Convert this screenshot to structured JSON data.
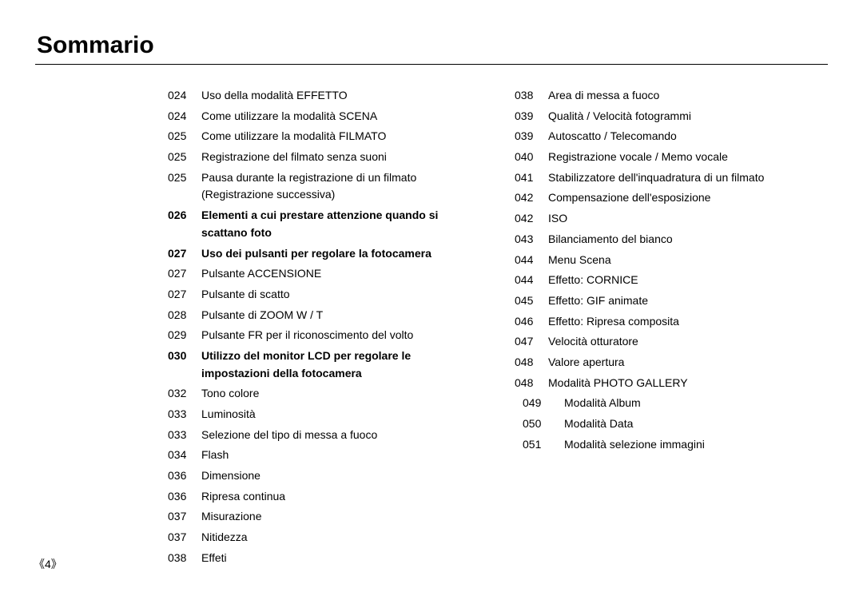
{
  "title": "Sommario",
  "pageNumber": "《4》",
  "leftColumn": [
    {
      "num": "024",
      "text": "Uso della modalità EFFETTO",
      "bold": false,
      "indent": 0
    },
    {
      "num": "024",
      "text": "Come utilizzare la modalità SCENA",
      "bold": false,
      "indent": 0
    },
    {
      "num": "025",
      "text": "Come utilizzare la modalità FILMATO",
      "bold": false,
      "indent": 0
    },
    {
      "num": "025",
      "text": "Registrazione del filmato senza suoni",
      "bold": false,
      "indent": 0
    },
    {
      "num": "025",
      "text": "Pausa durante la registrazione di un filmato (Registrazione successiva)",
      "bold": false,
      "indent": 0
    },
    {
      "num": "026",
      "text": "Elementi a cui prestare attenzione quando si scattano foto",
      "bold": true,
      "indent": 0
    },
    {
      "num": "027",
      "text": "Uso dei pulsanti per regolare la fotocamera",
      "bold": true,
      "indent": 0
    },
    {
      "num": "027",
      "text": "Pulsante ACCENSIONE",
      "bold": false,
      "indent": 0
    },
    {
      "num": "027",
      "text": "Pulsante di scatto",
      "bold": false,
      "indent": 0
    },
    {
      "num": "028",
      "text": "Pulsante di ZOOM W / T",
      "bold": false,
      "indent": 0
    },
    {
      "num": "029",
      "text": "Pulsante FR per il riconoscimento del volto",
      "bold": false,
      "indent": 0
    },
    {
      "num": "030",
      "text": "Utilizzo del monitor LCD per regolare le impostazioni della fotocamera",
      "bold": true,
      "indent": 0
    },
    {
      "num": "032",
      "text": "Tono colore",
      "bold": false,
      "indent": 0
    },
    {
      "num": "033",
      "text": "Luminosità",
      "bold": false,
      "indent": 0
    },
    {
      "num": "033",
      "text": "Selezione del tipo di messa a fuoco",
      "bold": false,
      "indent": 0
    },
    {
      "num": "034",
      "text": "Flash",
      "bold": false,
      "indent": 0
    },
    {
      "num": "036",
      "text": "Dimensione",
      "bold": false,
      "indent": 0
    },
    {
      "num": "036",
      "text": "Ripresa continua",
      "bold": false,
      "indent": 0
    },
    {
      "num": "037",
      "text": "Misurazione",
      "bold": false,
      "indent": 0
    },
    {
      "num": "037",
      "text": "Nitidezza",
      "bold": false,
      "indent": 0
    },
    {
      "num": "038",
      "text": "Effeti",
      "bold": false,
      "indent": 0
    }
  ],
  "rightColumn": [
    {
      "num": "038",
      "text": "Area di messa a fuoco",
      "bold": false,
      "indent": 0
    },
    {
      "num": "039",
      "text": "Qualità / Velocità fotogrammi",
      "bold": false,
      "indent": 0
    },
    {
      "num": "039",
      "text": "Autoscatto / Telecomando",
      "bold": false,
      "indent": 0
    },
    {
      "num": "040",
      "text": "Registrazione vocale / Memo vocale",
      "bold": false,
      "indent": 0
    },
    {
      "num": "041",
      "text": "Stabilizzatore dell'inquadratura di un filmato",
      "bold": false,
      "indent": 0
    },
    {
      "num": "042",
      "text": "Compensazione dell'esposizione",
      "bold": false,
      "indent": 0
    },
    {
      "num": "042",
      "text": "ISO",
      "bold": false,
      "indent": 0
    },
    {
      "num": "043",
      "text": "Bilanciamento del bianco",
      "bold": false,
      "indent": 0
    },
    {
      "num": "044",
      "text": "Menu Scena",
      "bold": false,
      "indent": 0
    },
    {
      "num": "044",
      "text": "Effetto: CORNICE",
      "bold": false,
      "indent": 0
    },
    {
      "num": "045",
      "text": "Effetto: GIF animate",
      "bold": false,
      "indent": 0
    },
    {
      "num": "046",
      "text": "Effetto: Ripresa composita",
      "bold": false,
      "indent": 0
    },
    {
      "num": "047",
      "text": "Velocità otturatore",
      "bold": false,
      "indent": 0
    },
    {
      "num": "048",
      "text": "Valore apertura",
      "bold": false,
      "indent": 0
    },
    {
      "num": "048",
      "text": "Modalità PHOTO GALLERY",
      "bold": false,
      "indent": 0
    },
    {
      "num": "049",
      "text": "Modalità Album",
      "bold": false,
      "indent": 1
    },
    {
      "num": "050",
      "text": "Modalità Data",
      "bold": false,
      "indent": 1
    },
    {
      "num": "051",
      "text": "Modalità selezione immagini",
      "bold": false,
      "indent": 1
    }
  ],
  "style": {
    "background_color": "#ffffff",
    "text_color": "#000000",
    "title_fontsize": 30,
    "body_fontsize": 14,
    "rule_color": "#000000",
    "font_family": "Arial"
  }
}
